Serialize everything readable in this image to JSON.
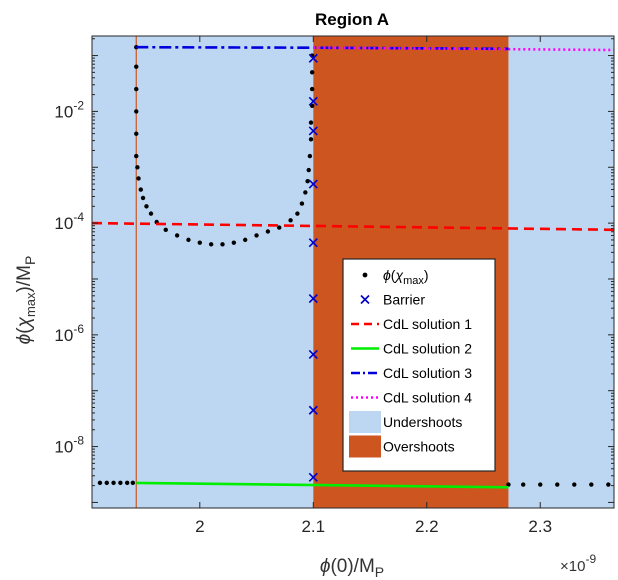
{
  "chart_data": {
    "type": "scatter",
    "title": "Region A",
    "xlabel": "ϕ(0)/M_P",
    "ylabel": "ϕ(χ_max)/M_P",
    "x_exponent_label": "×10",
    "x_exponent_power": "-9",
    "xlim": [
      1.905,
      2.365
    ],
    "ylim_log10": [
      -9.1,
      -0.65
    ],
    "y_scale": "log",
    "x_ticks": [
      2.0,
      2.1,
      2.2,
      2.3
    ],
    "x_tick_labels": [
      "2",
      "2.1",
      "2.2",
      "2.3"
    ],
    "y_ticks_log10": [
      -8,
      -6,
      -4,
      -2
    ],
    "y_tick_base": "10",
    "y_tick_exponents": [
      "-8",
      "-6",
      "-4",
      "-2"
    ],
    "regions": [
      {
        "name": "Undershoots",
        "x": [
          1.905,
          2.1
        ],
        "color": "#bdd7f2"
      },
      {
        "name": "Overshoots",
        "x": [
          2.1,
          2.272
        ],
        "color": "#cc5520"
      },
      {
        "name": "Undershoots",
        "x": [
          2.272,
          2.365
        ],
        "color": "#bdd7f2"
      }
    ],
    "vertical_line": {
      "x": 1.944,
      "color": "#cc5520"
    },
    "series": [
      {
        "name": "ϕ(χ_max)",
        "kind": "dots",
        "color": "#000000",
        "points_log10": [
          [
            1.912,
            -8.65
          ],
          [
            1.918,
            -8.65
          ],
          [
            1.924,
            -8.65
          ],
          [
            1.93,
            -8.65
          ],
          [
            1.936,
            -8.65
          ],
          [
            1.941,
            -8.65
          ],
          [
            1.944,
            -0.85
          ],
          [
            1.944,
            -1.2
          ],
          [
            1.944,
            -1.6
          ],
          [
            1.944,
            -2.0
          ],
          [
            1.944,
            -2.4
          ],
          [
            1.944,
            -2.8
          ],
          [
            1.945,
            -3.0
          ],
          [
            1.946,
            -3.2
          ],
          [
            1.948,
            -3.4
          ],
          [
            1.95,
            -3.55
          ],
          [
            1.953,
            -3.7
          ],
          [
            1.957,
            -3.83
          ],
          [
            1.962,
            -3.98
          ],
          [
            1.97,
            -4.12
          ],
          [
            1.98,
            -4.22
          ],
          [
            1.99,
            -4.3
          ],
          [
            2.0,
            -4.35
          ],
          [
            2.01,
            -4.38
          ],
          [
            2.02,
            -4.38
          ],
          [
            2.03,
            -4.35
          ],
          [
            2.04,
            -4.3
          ],
          [
            2.05,
            -4.22
          ],
          [
            2.06,
            -4.15
          ],
          [
            2.07,
            -4.08
          ],
          [
            2.08,
            -3.95
          ],
          [
            2.086,
            -3.83
          ],
          [
            2.09,
            -3.65
          ],
          [
            2.093,
            -3.45
          ],
          [
            2.095,
            -3.25
          ],
          [
            2.096,
            -3.05
          ],
          [
            2.097,
            -2.8
          ],
          [
            2.098,
            -2.5
          ],
          [
            2.098,
            -2.2
          ],
          [
            2.099,
            -1.9
          ],
          [
            2.099,
            -1.6
          ],
          [
            2.099,
            -1.3
          ],
          [
            2.099,
            -1.0
          ],
          [
            2.272,
            -8.68
          ],
          [
            2.285,
            -8.68
          ],
          [
            2.3,
            -8.68
          ],
          [
            2.315,
            -8.68
          ],
          [
            2.33,
            -8.68
          ],
          [
            2.345,
            -8.68
          ],
          [
            2.36,
            -8.68
          ]
        ]
      },
      {
        "name": "Barrier",
        "kind": "x-markers",
        "color": "#0000cc",
        "points_log10": [
          [
            2.1,
            -1.05
          ],
          [
            2.1,
            -1.82
          ],
          [
            2.1,
            -2.35
          ],
          [
            2.1,
            -3.3
          ],
          [
            2.1,
            -4.35
          ],
          [
            2.1,
            -5.35
          ],
          [
            2.1,
            -6.35
          ],
          [
            2.1,
            -7.35
          ],
          [
            2.1,
            -8.55
          ]
        ]
      },
      {
        "name": "CdL solution 1",
        "kind": "line",
        "dash": "red-dash",
        "color": "#ff0000",
        "points_log10": [
          [
            1.905,
            -4.0
          ],
          [
            2.365,
            -4.12
          ]
        ]
      },
      {
        "name": "CdL solution 2",
        "kind": "line",
        "dash": "solid",
        "color": "#00ee00",
        "points_log10": [
          [
            1.944,
            -8.65
          ],
          [
            2.272,
            -8.73
          ]
        ]
      },
      {
        "name": "CdL solution 3",
        "kind": "line",
        "dash": "dash-dot",
        "color": "#0000dd",
        "points_log10": [
          [
            1.944,
            -0.85
          ],
          [
            2.1,
            -0.86
          ],
          [
            2.272,
            -0.88
          ]
        ]
      },
      {
        "name": "CdL solution 4",
        "kind": "line",
        "dash": "dotted",
        "color": "#ff00ff",
        "points_log10": [
          [
            2.1,
            -0.86
          ],
          [
            2.365,
            -0.9
          ]
        ]
      }
    ],
    "legend": {
      "position": "lower-right-of-center",
      "entries": [
        {
          "label": "ϕ(χ_max)",
          "symbol": "dot",
          "color": "#000000"
        },
        {
          "label": "Barrier",
          "symbol": "x",
          "color": "#0000cc"
        },
        {
          "label": "CdL solution 1",
          "symbol": "dash",
          "color": "#ff0000"
        },
        {
          "label": "CdL solution 2",
          "symbol": "solid",
          "color": "#00ee00"
        },
        {
          "label": "CdL solution 3",
          "symbol": "dash-dot",
          "color": "#0000dd"
        },
        {
          "label": "CdL solution 4",
          "symbol": "dotted",
          "color": "#ff00ff"
        },
        {
          "label": "Undershoots",
          "symbol": "patch",
          "color": "#bdd7f2"
        },
        {
          "label": "Overshoots",
          "symbol": "patch",
          "color": "#cc5520"
        }
      ]
    }
  }
}
